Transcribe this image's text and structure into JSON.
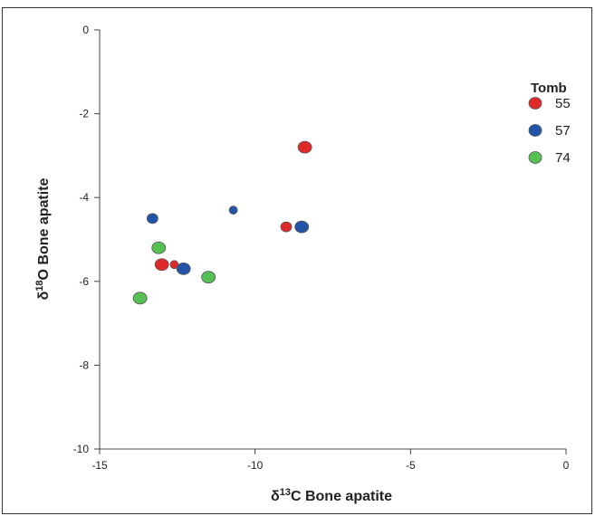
{
  "chart_data": {
    "type": "scatter",
    "title": "",
    "xlabel": {
      "prefix": "δ",
      "sup": "13",
      "rest": "C Bone apatite"
    },
    "ylabel": {
      "prefix": "δ",
      "sup": "18",
      "rest": "O Bone apatite"
    },
    "xlim": [
      -15,
      0
    ],
    "ylim": [
      -10,
      0
    ],
    "x_ticks": [
      -15,
      -10,
      -5,
      0
    ],
    "y_ticks": [
      0,
      -2,
      -4,
      -6,
      -8,
      -10
    ],
    "grid": false,
    "legend": {
      "title": "Tomb",
      "position": "top-right"
    },
    "series": [
      {
        "name": "55",
        "color": "#e02a2a",
        "points": [
          {
            "x": -8.4,
            "y": -2.8,
            "size": "large"
          },
          {
            "x": -9.0,
            "y": -4.7,
            "size": "medium"
          },
          {
            "x": -13.0,
            "y": -5.6,
            "size": "large"
          },
          {
            "x": -12.6,
            "y": -5.6,
            "size": "small"
          }
        ]
      },
      {
        "name": "57",
        "color": "#2255a8",
        "points": [
          {
            "x": -13.3,
            "y": -4.5,
            "size": "medium"
          },
          {
            "x": -10.7,
            "y": -4.3,
            "size": "small"
          },
          {
            "x": -8.5,
            "y": -4.7,
            "size": "large"
          },
          {
            "x": -12.3,
            "y": -5.7,
            "size": "large"
          }
        ]
      },
      {
        "name": "74",
        "color": "#55c155",
        "points": [
          {
            "x": -13.1,
            "y": -5.2,
            "size": "large"
          },
          {
            "x": -11.5,
            "y": -5.9,
            "size": "large"
          },
          {
            "x": -13.7,
            "y": -6.4,
            "size": "large"
          }
        ]
      }
    ]
  }
}
